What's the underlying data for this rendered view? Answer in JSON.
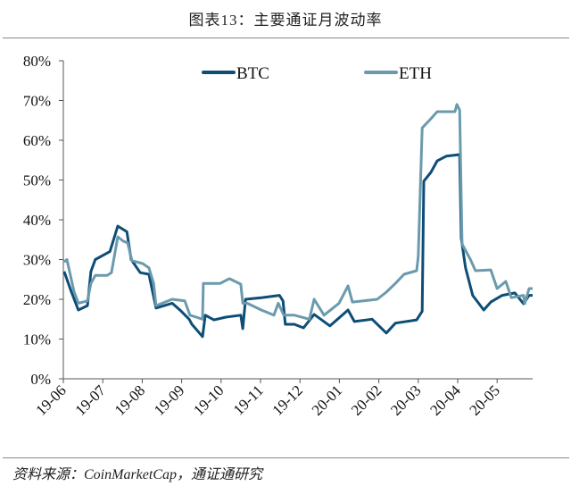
{
  "chart_data": {
    "type": "line",
    "title": "图表13：主要通证月波动率",
    "source": "资料来源：CoinMarketCap，通证通研究",
    "xlabel": "",
    "ylabel": "",
    "ylim": [
      0,
      80
    ],
    "y_ticks": [
      "0%",
      "10%",
      "20%",
      "30%",
      "40%",
      "50%",
      "60%",
      "70%",
      "80%"
    ],
    "x_ticks": [
      "19-06",
      "19-07",
      "19-08",
      "19-09",
      "19-10",
      "19-11",
      "19-12",
      "20-01",
      "20-02",
      "20-03",
      "20-04",
      "20-05"
    ],
    "x_unit": "months since 19-06",
    "xlim": [
      0,
      11.9
    ],
    "legend_position": "top-center",
    "grid": false,
    "series": [
      {
        "name": "BTC",
        "color": "#0e4d76",
        "points": [
          [
            0.02,
            27
          ],
          [
            0.2,
            22
          ],
          [
            0.38,
            17.3
          ],
          [
            0.61,
            18.4
          ],
          [
            0.7,
            27
          ],
          [
            0.81,
            30
          ],
          [
            1.18,
            32
          ],
          [
            1.38,
            38.4
          ],
          [
            1.61,
            37
          ],
          [
            1.72,
            30
          ],
          [
            1.95,
            26.7
          ],
          [
            2.17,
            26.3
          ],
          [
            2.35,
            17.8
          ],
          [
            2.76,
            19
          ],
          [
            2.99,
            17
          ],
          [
            3.19,
            15
          ],
          [
            3.26,
            13.7
          ],
          [
            3.53,
            10.6
          ],
          [
            3.6,
            16
          ],
          [
            3.82,
            14.8
          ],
          [
            4.12,
            15.5
          ],
          [
            4.5,
            16
          ],
          [
            4.55,
            12.6
          ],
          [
            4.62,
            20
          ],
          [
            5.02,
            20.4
          ],
          [
            5.48,
            21
          ],
          [
            5.57,
            19.6
          ],
          [
            5.63,
            13.7
          ],
          [
            5.86,
            13.7
          ],
          [
            6.09,
            12.8
          ],
          [
            6.36,
            16.2
          ],
          [
            6.76,
            13.3
          ],
          [
            7.22,
            17.3
          ],
          [
            7.38,
            14.4
          ],
          [
            7.83,
            15
          ],
          [
            8.19,
            11.5
          ],
          [
            8.42,
            14
          ],
          [
            8.96,
            14.8
          ],
          [
            9.1,
            17
          ],
          [
            9.14,
            49.7
          ],
          [
            9.32,
            51.9
          ],
          [
            9.48,
            54.8
          ],
          [
            9.71,
            56
          ],
          [
            10.05,
            56.4
          ],
          [
            10.09,
            35.3
          ],
          [
            10.2,
            27.9
          ],
          [
            10.38,
            21
          ],
          [
            10.66,
            17.3
          ],
          [
            10.84,
            19.3
          ],
          [
            11.13,
            21
          ],
          [
            11.45,
            21.6
          ],
          [
            11.67,
            18.9
          ],
          [
            11.81,
            21
          ],
          [
            11.9,
            21
          ]
        ]
      },
      {
        "name": "ETH",
        "color": "#6b9aad",
        "points": [
          [
            0.02,
            29.4
          ],
          [
            0.09,
            30
          ],
          [
            0.27,
            22
          ],
          [
            0.38,
            19
          ],
          [
            0.61,
            19.6
          ],
          [
            0.7,
            24
          ],
          [
            0.81,
            26
          ],
          [
            1.11,
            26
          ],
          [
            1.22,
            26.7
          ],
          [
            1.38,
            35.7
          ],
          [
            1.52,
            34.6
          ],
          [
            1.63,
            34.2
          ],
          [
            1.74,
            29.7
          ],
          [
            2.01,
            29
          ],
          [
            2.17,
            27.9
          ],
          [
            2.29,
            24
          ],
          [
            2.35,
            18.4
          ],
          [
            2.76,
            20
          ],
          [
            3.08,
            19.6
          ],
          [
            3.21,
            16
          ],
          [
            3.37,
            15.5
          ],
          [
            3.53,
            15
          ],
          [
            3.55,
            24
          ],
          [
            3.98,
            24
          ],
          [
            4.21,
            25.2
          ],
          [
            4.5,
            23.8
          ],
          [
            4.55,
            19
          ],
          [
            4.66,
            19
          ],
          [
            5.02,
            17.3
          ],
          [
            5.34,
            16
          ],
          [
            5.45,
            19
          ],
          [
            5.59,
            16
          ],
          [
            5.86,
            16
          ],
          [
            6.24,
            15
          ],
          [
            6.36,
            20
          ],
          [
            6.61,
            16
          ],
          [
            6.99,
            19
          ],
          [
            7.22,
            23.4
          ],
          [
            7.33,
            19.3
          ],
          [
            7.96,
            20
          ],
          [
            8.19,
            21.8
          ],
          [
            8.42,
            24
          ],
          [
            8.64,
            26.3
          ],
          [
            8.96,
            27.2
          ],
          [
            9.0,
            30.8
          ],
          [
            9.1,
            63.1
          ],
          [
            9.32,
            65.4
          ],
          [
            9.48,
            67.2
          ],
          [
            9.93,
            67.2
          ],
          [
            9.98,
            69
          ],
          [
            10.05,
            67.6
          ],
          [
            10.11,
            33.9
          ],
          [
            10.32,
            30.1
          ],
          [
            10.45,
            27.2
          ],
          [
            10.84,
            27.4
          ],
          [
            11.0,
            22.7
          ],
          [
            11.22,
            24.5
          ],
          [
            11.36,
            20.4
          ],
          [
            11.67,
            21
          ],
          [
            11.7,
            18.9
          ],
          [
            11.81,
            22.7
          ],
          [
            11.9,
            22.7
          ]
        ]
      }
    ]
  }
}
